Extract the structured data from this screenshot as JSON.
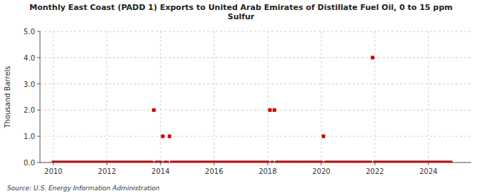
{
  "chart_data": {
    "type": "scatter",
    "title": "Monthly East Coast (PADD 1) Exports to United Arab Emirates of Distillate Fuel Oil, 0 to 15 ppm\nSulfur",
    "ylabel": "Thousand Barrels",
    "annotations": [
      "Source: U.S. Energy Information Administration"
    ],
    "color": "#cc0000",
    "marker": "square",
    "grid": true,
    "xlim": [
      2009.5,
      2025.6
    ],
    "ylim": [
      0.0,
      5.0
    ],
    "xticks": [
      2010,
      2012,
      2014,
      2016,
      2018,
      2020,
      2022,
      2024
    ],
    "yticks": [
      {
        "value": 0.0,
        "label": "0.0"
      },
      {
        "value": 1.0,
        "label": "1.0"
      },
      {
        "value": 2.0,
        "label": "2.0"
      },
      {
        "value": 3.0,
        "label": "3.0"
      },
      {
        "value": 4.0,
        "label": "4.0"
      },
      {
        "value": 5.0,
        "label": "5.0"
      }
    ],
    "x": [
      2010,
      2010.0833333333,
      2010.1666666667,
      2010.25,
      2010.3333333333,
      2010.4166666667,
      2010.5,
      2010.5833333333,
      2010.6666666667,
      2010.75,
      2010.8333333333,
      2010.9166666667,
      2011,
      2011.0833333333,
      2011.1666666667,
      2011.25,
      2011.3333333333,
      2011.4166666667,
      2011.5,
      2011.5833333333,
      2011.6666666667,
      2011.75,
      2011.8333333333,
      2011.9166666667,
      2012,
      2012.0833333333,
      2012.1666666667,
      2012.25,
      2012.3333333333,
      2012.4166666667,
      2012.5,
      2012.5833333333,
      2012.6666666667,
      2012.75,
      2012.8333333333,
      2012.9166666667,
      2013,
      2013.0833333333,
      2013.1666666667,
      2013.25,
      2013.3333333333,
      2013.4166666667,
      2013.5,
      2013.5833333333,
      2013.6666666667,
      2013.75,
      2013.8333333333,
      2013.9166666667,
      2014,
      2014.0833333333,
      2014.1666666667,
      2014.25,
      2014.3333333333,
      2014.4166666667,
      2014.5,
      2014.5833333333,
      2014.6666666667,
      2014.75,
      2014.8333333333,
      2014.9166666667,
      2015,
      2015.0833333333,
      2015.1666666667,
      2015.25,
      2015.3333333333,
      2015.4166666667,
      2015.5,
      2015.5833333333,
      2015.6666666667,
      2015.75,
      2015.8333333333,
      2015.9166666667,
      2016,
      2016.0833333333,
      2016.1666666667,
      2016.25,
      2016.3333333333,
      2016.4166666667,
      2016.5,
      2016.5833333333,
      2016.6666666667,
      2016.75,
      2016.8333333333,
      2016.9166666667,
      2017,
      2017.0833333333,
      2017.1666666667,
      2017.25,
      2017.3333333333,
      2017.4166666667,
      2017.5,
      2017.5833333333,
      2017.6666666667,
      2017.75,
      2017.8333333333,
      2017.9166666667,
      2018,
      2018.0833333333,
      2018.1666666667,
      2018.25,
      2018.3333333333,
      2018.4166666667,
      2018.5,
      2018.5833333333,
      2018.6666666667,
      2018.75,
      2018.8333333333,
      2018.9166666667,
      2019,
      2019.0833333333,
      2019.1666666667,
      2019.25,
      2019.3333333333,
      2019.4166666667,
      2019.5,
      2019.5833333333,
      2019.6666666667,
      2019.75,
      2019.8333333333,
      2019.9166666667,
      2020,
      2020.0833333333,
      2020.1666666667,
      2020.25,
      2020.3333333333,
      2020.4166666667,
      2020.5,
      2020.5833333333,
      2020.6666666667,
      2020.75,
      2020.8333333333,
      2020.9166666667,
      2021,
      2021.0833333333,
      2021.1666666667,
      2021.25,
      2021.3333333333,
      2021.4166666667,
      2021.5,
      2021.5833333333,
      2021.6666666667,
      2021.75,
      2021.8333333333,
      2021.9166666667,
      2022,
      2022.0833333333,
      2022.1666666667,
      2022.25,
      2022.3333333333,
      2022.4166666667,
      2022.5,
      2022.5833333333,
      2022.6666666667,
      2022.75,
      2022.8333333333,
      2022.9166666667,
      2023,
      2023.0833333333,
      2023.1666666667,
      2023.25,
      2023.3333333333,
      2023.4166666667,
      2023.5,
      2023.5833333333,
      2023.6666666667,
      2023.75,
      2023.8333333333,
      2023.9166666667,
      2024,
      2024.0833333333,
      2024.1666666667,
      2024.25,
      2024.3333333333,
      2024.4166666667,
      2024.5,
      2024.5833333333,
      2024.6666666667,
      2024.75,
      2024.8333333333
    ],
    "values": [
      0,
      0,
      0,
      0,
      0,
      0,
      0,
      0,
      0,
      0,
      0,
      0,
      0,
      0,
      0,
      0,
      0,
      0,
      0,
      0,
      0,
      0,
      0,
      0,
      0,
      0,
      0,
      0,
      0,
      0,
      0,
      0,
      0,
      0,
      0,
      0,
      0,
      0,
      0,
      0,
      0,
      0,
      0,
      0,
      0,
      2,
      0,
      0,
      0,
      1,
      0,
      0,
      1,
      0,
      0,
      0,
      0,
      0,
      0,
      0,
      0,
      0,
      0,
      0,
      0,
      0,
      0,
      0,
      0,
      0,
      0,
      0,
      0,
      0,
      0,
      0,
      0,
      0,
      0,
      0,
      0,
      0,
      0,
      0,
      0,
      0,
      0,
      0,
      0,
      0,
      0,
      0,
      0,
      0,
      0,
      0,
      0,
      2,
      0,
      2,
      0,
      0,
      0,
      0,
      0,
      0,
      0,
      0,
      0,
      0,
      0,
      0,
      0,
      0,
      0,
      0,
      0,
      0,
      0,
      0,
      0,
      1,
      0,
      0,
      0,
      0,
      0,
      0,
      0,
      0,
      0,
      0,
      0,
      0,
      0,
      0,
      0,
      0,
      0,
      0,
      0,
      0,
      0,
      4,
      0,
      0,
      0,
      0,
      0,
      0,
      0,
      0,
      0,
      0,
      0,
      0,
      0,
      0,
      0,
      0,
      0,
      0,
      0,
      0,
      0,
      0,
      0,
      0,
      0,
      0,
      0,
      0,
      0,
      0,
      0,
      0,
      0,
      0,
      0
    ]
  }
}
